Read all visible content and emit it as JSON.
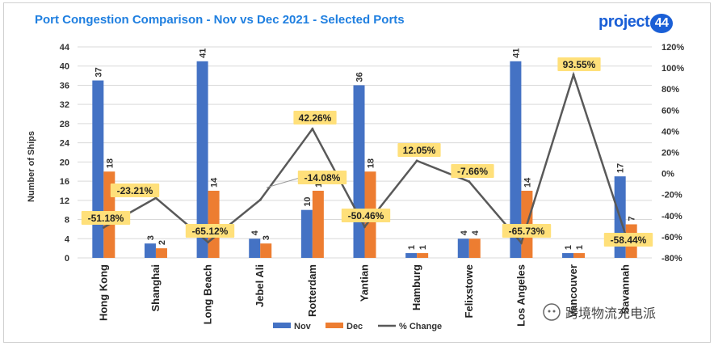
{
  "title": "Port Congestion Comparison - Nov vs Dec 2021 - Selected Ports",
  "logo": {
    "text": "project",
    "number": "44"
  },
  "watermark": "跨境物流充电派",
  "colors": {
    "nov": "#4472c4",
    "dec": "#ed7d31",
    "change": "#595959",
    "label_bg": "#ffe07a",
    "title": "#1f7fe0"
  },
  "chart_data": {
    "type": "bar",
    "categories": [
      "Hong Kong",
      "Shanghai",
      "Long Beach",
      "Jebel Ali",
      "Rotterdam",
      "Yantian",
      "Hamburg",
      "Felixstowe",
      "Los Angeles",
      "Vancouver",
      "Savannah"
    ],
    "series": [
      {
        "name": "Nov",
        "type": "bar",
        "axis": "left",
        "values": [
          37,
          3,
          41,
          4,
          10,
          36,
          1,
          4,
          41,
          1,
          17
        ]
      },
      {
        "name": "Dec",
        "type": "bar",
        "axis": "left",
        "values": [
          18,
          2,
          14,
          3,
          14,
          18,
          1,
          4,
          14,
          1,
          7
        ]
      },
      {
        "name": "% Change",
        "type": "line",
        "axis": "right",
        "values": [
          -51.18,
          -23.21,
          -65.12,
          -25.0,
          42.26,
          -50.46,
          12.05,
          -7.66,
          -65.73,
          93.55,
          -58.44
        ]
      }
    ],
    "change_labels": [
      "-51.18%",
      "-23.21%",
      "-65.12%",
      "",
      "42.26%",
      "-50.46%",
      "12.05%",
      "-7.66%",
      "-65.73%",
      "93.55%",
      "-58.44%"
    ],
    "extra_labels": [
      {
        "text": "-14.08%"
      }
    ],
    "ylabel": "Number of Ships",
    "ylim": [
      0,
      44
    ],
    "yticks": [
      "0",
      "4",
      "8",
      "12",
      "16",
      "20",
      "24",
      "28",
      "32",
      "36",
      "40",
      "44"
    ],
    "y2lim": [
      -80,
      120
    ],
    "y2ticks": [
      "-80%",
      "-60%",
      "-40%",
      "-20%",
      "0%",
      "20%",
      "40%",
      "60%",
      "80%",
      "100%",
      "120%"
    ],
    "legend_position": "bottom",
    "grid": true
  }
}
